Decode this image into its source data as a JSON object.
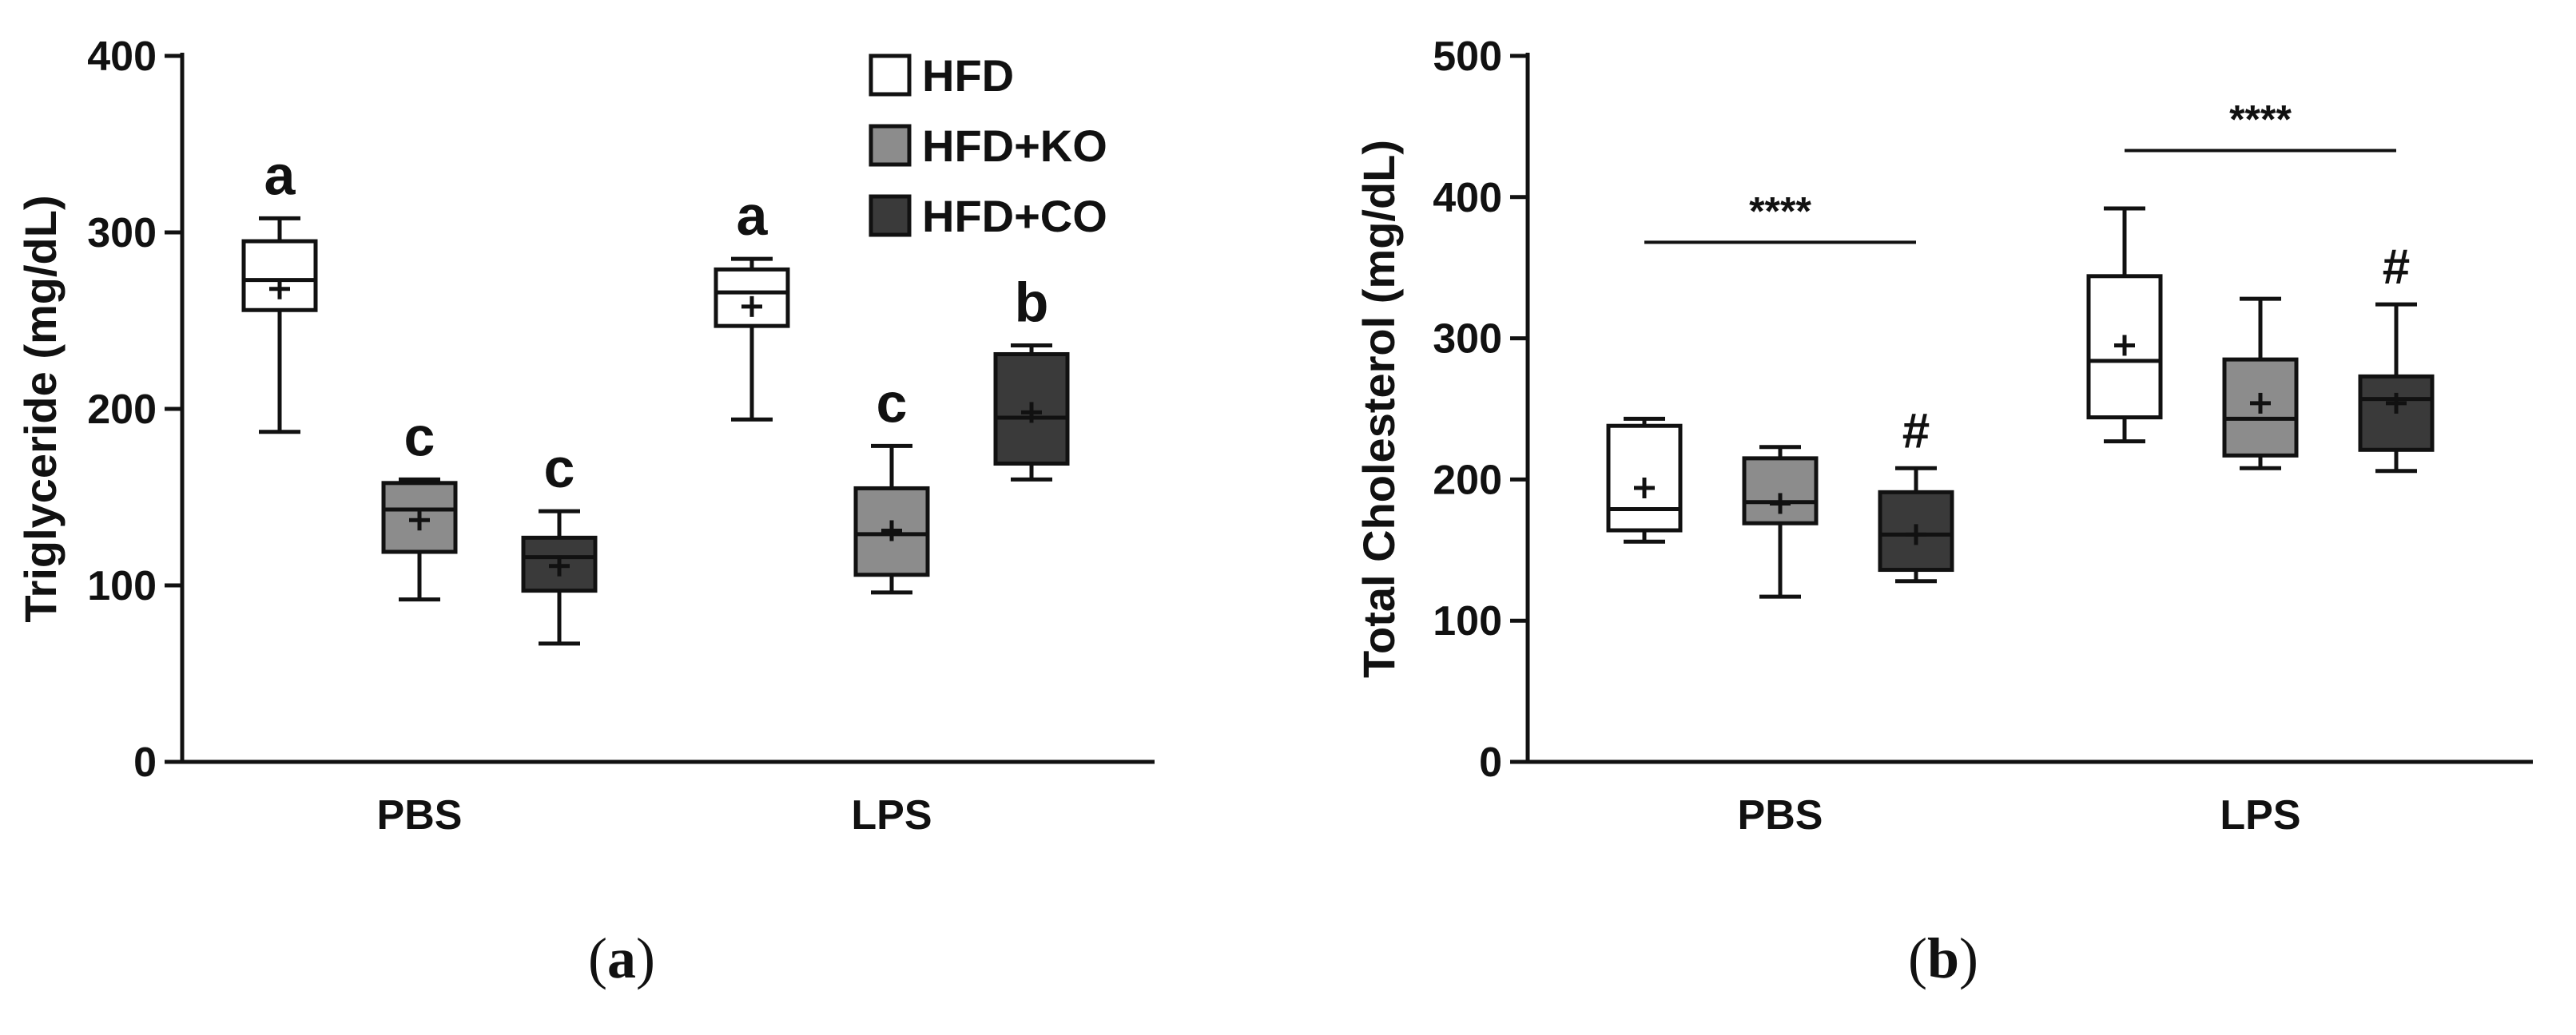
{
  "chart_data": [
    {
      "panel": "a",
      "type": "box",
      "ylabel": "Triglyceride (mg/dL)",
      "ylim": [
        0,
        400
      ],
      "yticks": [
        0,
        100,
        200,
        300,
        400
      ],
      "categories": [
        "PBS",
        "LPS"
      ],
      "series": [
        {
          "name": "HFD",
          "color": "#ffffff",
          "boxes": [
            {
              "min": 187,
              "q1": 256,
              "median": 273,
              "q3": 295,
              "max": 308,
              "mean": 268,
              "label": "a"
            },
            {
              "min": 194,
              "q1": 247,
              "median": 266,
              "q3": 279,
              "max": 285,
              "mean": 258,
              "label": "a"
            }
          ]
        },
        {
          "name": "HFD+KO",
          "color": "#8c8c8c",
          "boxes": [
            {
              "min": 92,
              "q1": 119,
              "median": 143,
              "q3": 158,
              "max": 160,
              "mean": 137,
              "label": "c"
            },
            {
              "min": 96,
              "q1": 106,
              "median": 129,
              "q3": 155,
              "max": 179,
              "mean": 131,
              "label": "c"
            }
          ]
        },
        {
          "name": "HFD+CO",
          "color": "#3a3a3a",
          "boxes": [
            {
              "min": 67,
              "q1": 97,
              "median": 116,
              "q3": 127,
              "max": 142,
              "mean": 111,
              "label": "c"
            },
            {
              "min": 160,
              "q1": 169,
              "median": 195,
              "q3": 231,
              "max": 236,
              "mean": 198,
              "label": "b"
            }
          ]
        }
      ],
      "legend": [
        "HFD",
        "HFD+KO",
        "HFD+CO"
      ],
      "panel_label": "(a)"
    },
    {
      "panel": "b",
      "type": "box",
      "ylabel": "Total Cholesterol (mg/dL)",
      "ylim": [
        0,
        500
      ],
      "yticks": [
        0,
        100,
        200,
        300,
        400,
        500
      ],
      "categories": [
        "PBS",
        "LPS"
      ],
      "series": [
        {
          "name": "HFD",
          "color": "#ffffff",
          "boxes": [
            {
              "min": 156,
              "q1": 164,
              "median": 179,
              "q3": 238,
              "max": 243,
              "mean": 194,
              "label": ""
            },
            {
              "min": 227,
              "q1": 244,
              "median": 284,
              "q3": 344,
              "max": 392,
              "mean": 295,
              "label": ""
            }
          ]
        },
        {
          "name": "HFD+KO",
          "color": "#8c8c8c",
          "boxes": [
            {
              "min": 117,
              "q1": 169,
              "median": 184,
              "q3": 215,
              "max": 223,
              "mean": 183,
              "label": ""
            },
            {
              "min": 208,
              "q1": 217,
              "median": 243,
              "q3": 285,
              "max": 328,
              "mean": 254,
              "label": ""
            }
          ]
        },
        {
          "name": "HFD+CO",
          "color": "#3a3a3a",
          "boxes": [
            {
              "min": 128,
              "q1": 136,
              "median": 161,
              "q3": 191,
              "max": 208,
              "mean": 161,
              "label": "#"
            },
            {
              "min": 206,
              "q1": 221,
              "median": 257,
              "q3": 273,
              "max": 324,
              "mean": 254,
              "label": "#"
            }
          ]
        }
      ],
      "significance": [
        {
          "category": "PBS",
          "text": "****",
          "y": 368
        },
        {
          "category": "LPS",
          "text": "****",
          "y": 433
        }
      ],
      "panel_label": "(b)"
    }
  ]
}
